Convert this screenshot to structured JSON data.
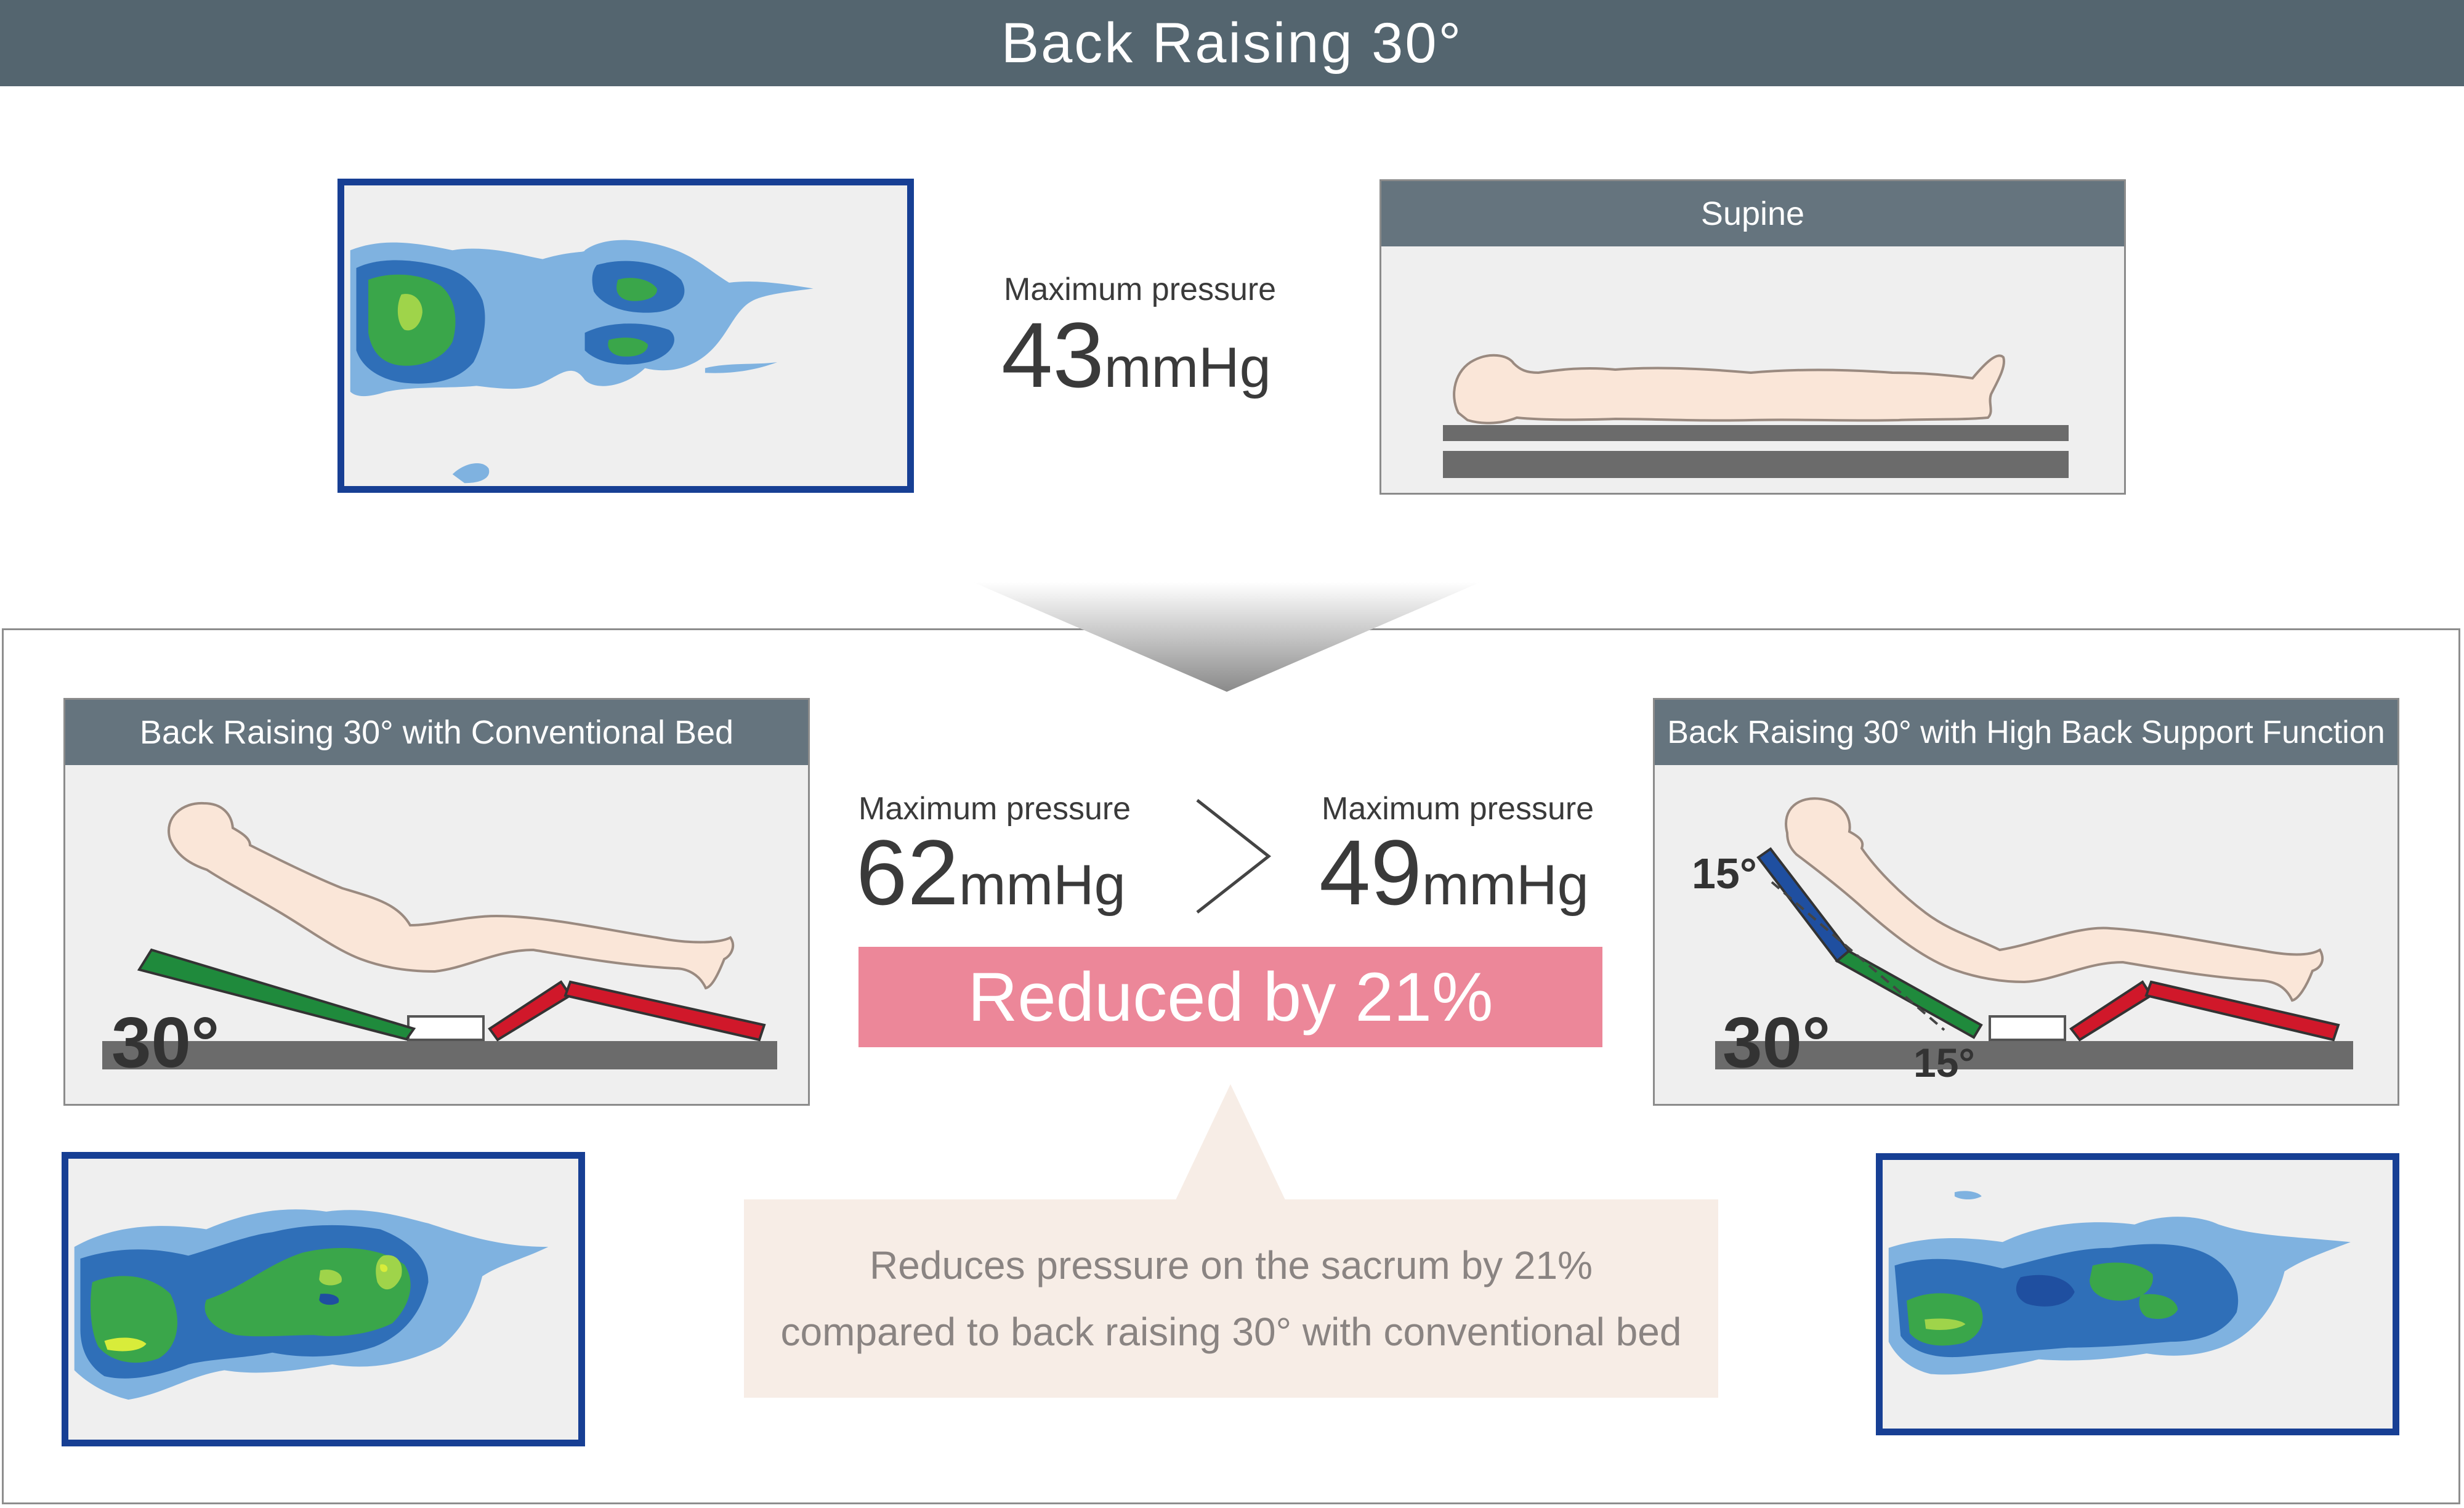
{
  "header": {
    "title": "Back Raising 30°"
  },
  "supine": {
    "panel_title": "Supine",
    "pressure_label": "Maximum pressure",
    "pressure_value": "43",
    "pressure_unit": "mmHg"
  },
  "conventional": {
    "panel_title": "Back Raising 30° with Conventional Bed",
    "angle_label": "30°",
    "pressure_label": "Maximum pressure",
    "pressure_value": "62",
    "pressure_unit": "mmHg"
  },
  "high_back": {
    "panel_title": "Back Raising 30° with High Back Support Function",
    "angle_main": "30°",
    "angle_upper": "15°",
    "angle_lower": "15°",
    "pressure_label": "Maximum pressure",
    "pressure_value": "49",
    "pressure_unit": "mmHg"
  },
  "comparison": {
    "symbol": ">"
  },
  "result": {
    "label": "Reduced by 21%"
  },
  "note": {
    "line1": "Reduces pressure on the sacrum by 21%",
    "line2": "compared to back raising 30° with conventional bed"
  },
  "colors": {
    "heatmap_light": "#7fb2e0",
    "heatmap_mid": "#2f6fb8",
    "heatmap_green": "#3aa64a",
    "heatmap_peak": "#d8ec3a",
    "bed_green": "#1f8a3c",
    "bed_red": "#d0182a",
    "bed_blue": "#1f4fa0",
    "body_fill": "#fae6d8",
    "highlight_pink": "#ec8799"
  }
}
